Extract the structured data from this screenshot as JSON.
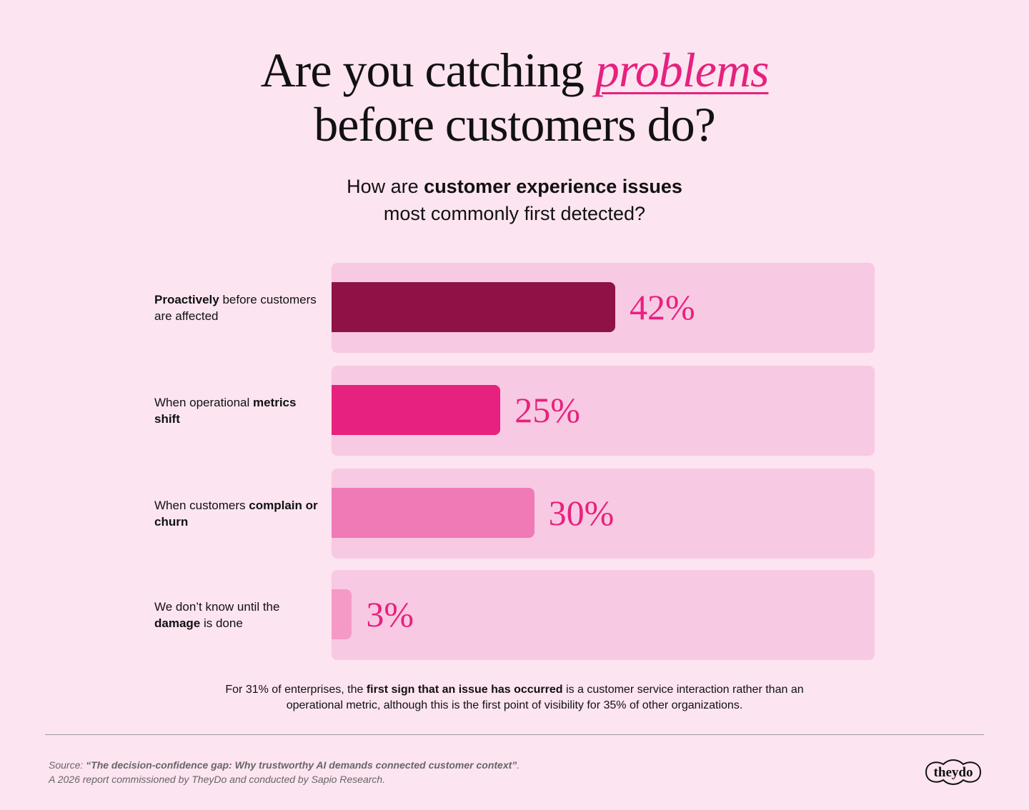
{
  "title": {
    "line1_pre": "Are you catching ",
    "line1_highlight": "problems",
    "line2": "before customers do?"
  },
  "subtitle": {
    "pre": "How are ",
    "bold": "customer experience issues",
    "line2": "most commonly first detected?"
  },
  "chart_data": {
    "type": "bar",
    "orientation": "horizontal",
    "categories": [
      "Proactively before customers are affected",
      "When operational metrics shift",
      "When customers complain or churn",
      "We don’t know until the damage is done"
    ],
    "category_parts": [
      {
        "bold_first": true,
        "bold": "Proactively",
        "rest": " before customers are affected"
      },
      {
        "bold_first": false,
        "plain": "When operational ",
        "bold": "metrics shift"
      },
      {
        "bold_first": false,
        "plain": "When customers ",
        "bold": "complain or churn"
      },
      {
        "bold_first": false,
        "plain": "We don’t know until the ",
        "bold": "damage",
        "tail": " is done"
      }
    ],
    "values": [
      42,
      25,
      30,
      3
    ],
    "value_labels": [
      "42%",
      "25%",
      "30%",
      "3%"
    ],
    "colors": [
      "#8e1245",
      "#e6217f",
      "#f07ab5",
      "#f59ac6"
    ],
    "xlim": [
      0,
      80
    ],
    "grid": false
  },
  "note": {
    "pre": "For 31% of enterprises, the ",
    "bold": "first sign that an issue has occurred",
    "post": " is a customer service interaction rather than an operational metric, although this is the first point of visibility for 35% of other organizations."
  },
  "source": {
    "prefix": "Source: ",
    "title": "“The decision-confidence gap: Why trustworthy AI demands connected customer context”",
    "suffix": ".",
    "line2": "A 2026 report commissioned by TheyDo and conducted by Sapio Research."
  },
  "logo": {
    "text": "theydo"
  },
  "colors": {
    "background": "#fce4f0",
    "track": "#f8c9e2",
    "accent": "#e6217f"
  }
}
